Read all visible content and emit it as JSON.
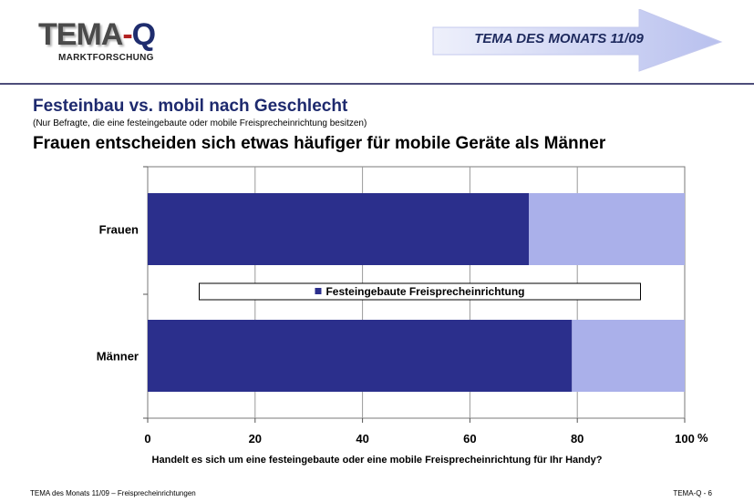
{
  "header": {
    "logo_part1": "TEMA",
    "logo_part2": "-",
    "logo_part3": "Q",
    "logo_sub": "MARKTFORSCHUNG",
    "banner": "TEMA DES MONATS 11/09"
  },
  "titles": {
    "main": "Festeinbau vs. mobil nach Geschlecht",
    "sub": "(Nur Befragte, die eine festeingebaute oder mobile Freisprecheinrichtung besitzen)",
    "headline": "Frauen entscheiden sich etwas häufiger für mobile Geräte als Männer"
  },
  "chart_data": {
    "type": "bar",
    "orientation": "horizontal",
    "stacked": true,
    "categories": [
      "Frauen",
      "Männer"
    ],
    "series": [
      {
        "name": "Festeingebaute Freisprecheinrichtung",
        "values": [
          71,
          79
        ],
        "color": "#2b2f8c"
      },
      {
        "values": [
          29,
          21
        ],
        "color": "#aab0ea"
      }
    ],
    "xlim": [
      0,
      100
    ],
    "xticks": [
      "0",
      "20",
      "40",
      "60",
      "80",
      "100"
    ],
    "xunit": "%",
    "grid": true,
    "legend": "center"
  },
  "question": "Handelt es sich um eine festeingebaute oder eine mobile Freisprecheinrichtung für Ihr Handy?",
  "footer": {
    "left": "TEMA des Monats 11/09 – Freisprecheinrichtungen",
    "right": "TEMA-Q - 6"
  }
}
